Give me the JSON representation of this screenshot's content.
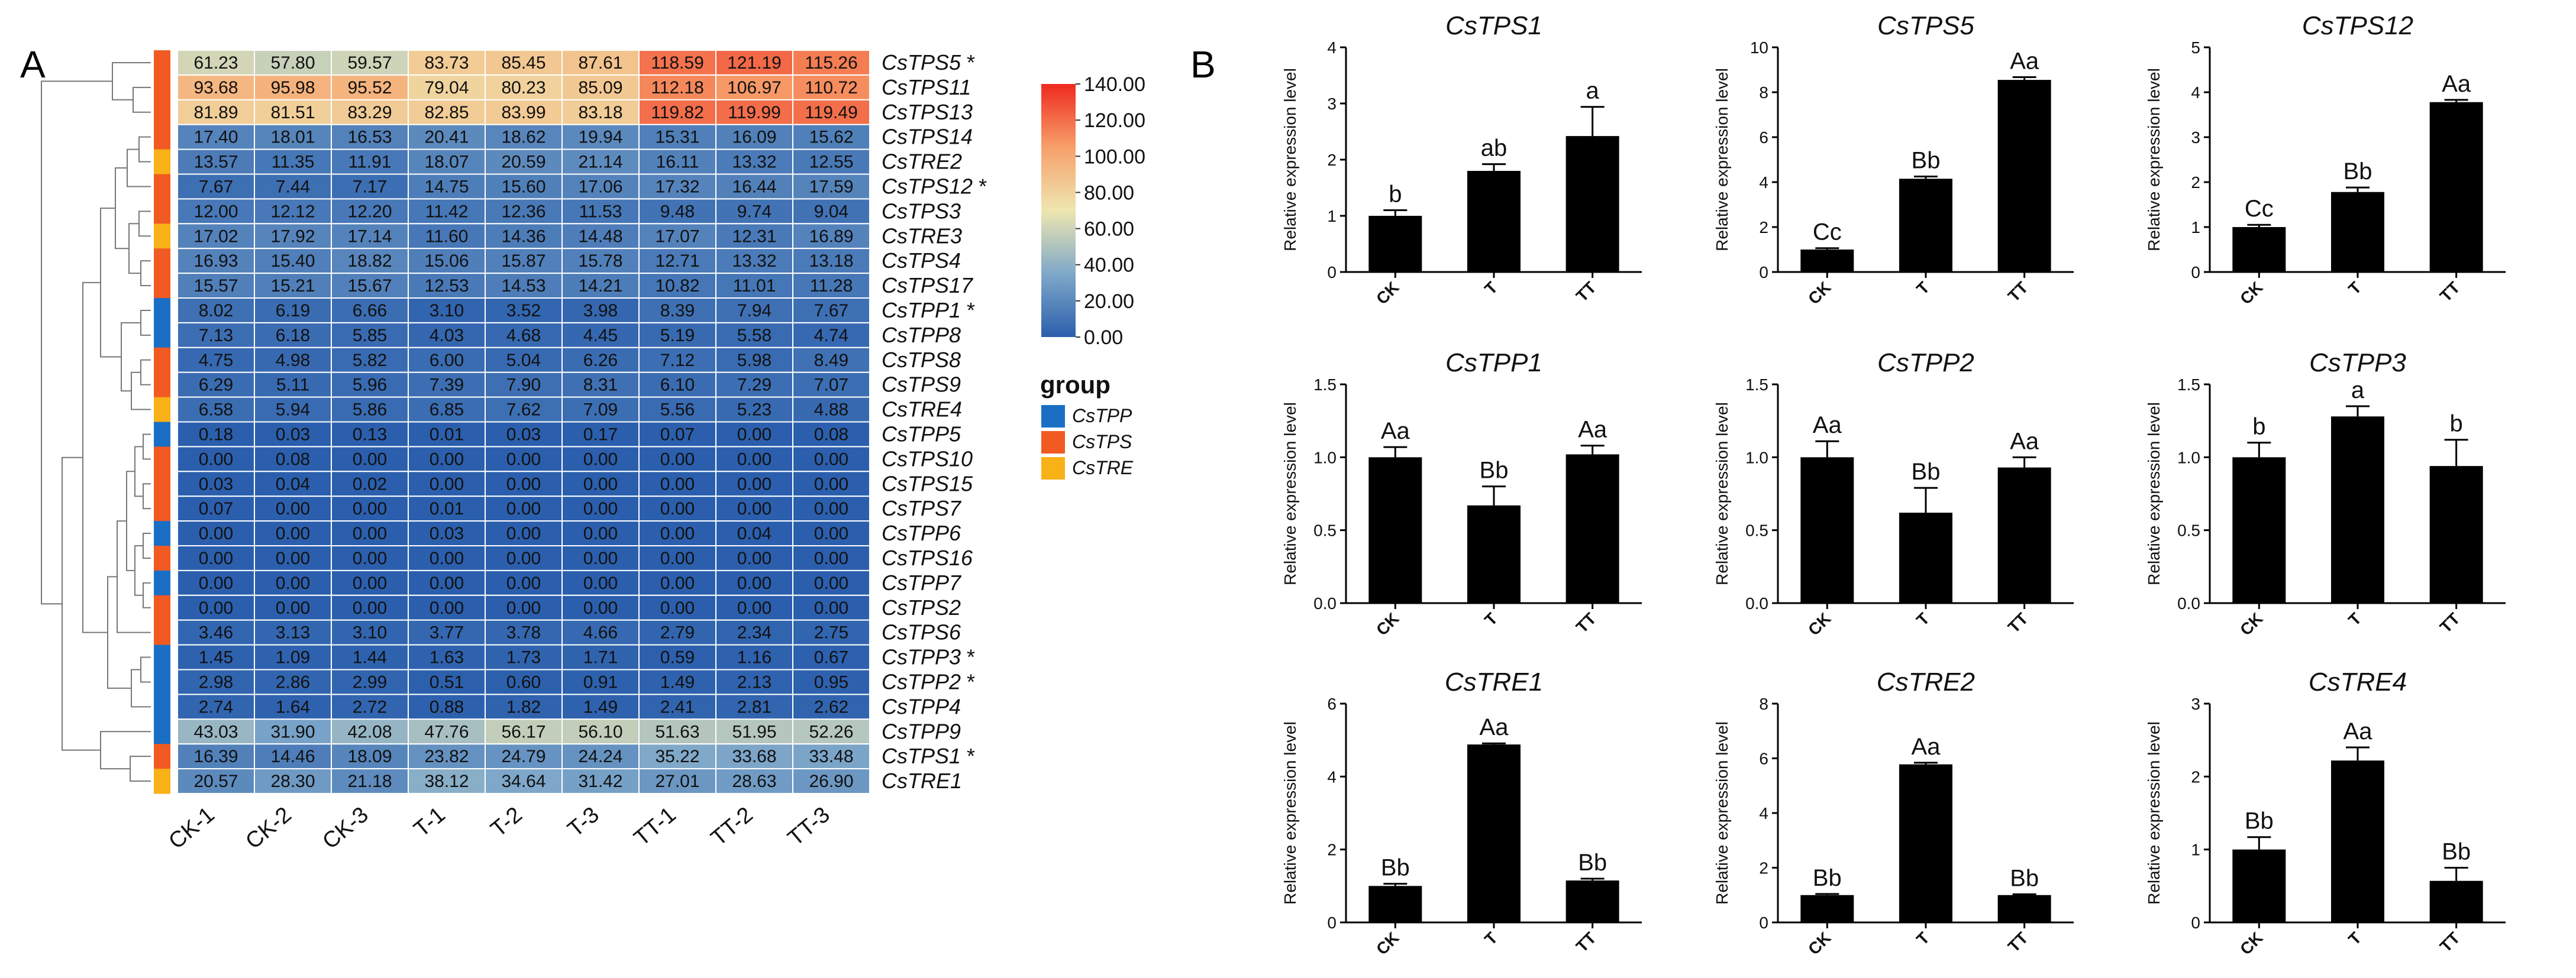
{
  "panels": {
    "a": "A",
    "b": "B"
  },
  "heatmap": {
    "columns": [
      "CK-1",
      "CK-2",
      "CK-3",
      "T-1",
      "T-2",
      "T-3",
      "TT-1",
      "TT-2",
      "TT-3"
    ],
    "rows": [
      {
        "gene": "CsTPS5",
        "group": "CsTPS",
        "star": true,
        "values": [
          61.23,
          57.8,
          59.57,
          83.73,
          85.45,
          87.61,
          118.59,
          121.19,
          115.26
        ]
      },
      {
        "gene": "CsTPS11",
        "group": "CsTPS",
        "star": false,
        "values": [
          93.68,
          95.98,
          95.52,
          79.04,
          80.23,
          85.09,
          112.18,
          106.97,
          110.72
        ]
      },
      {
        "gene": "CsTPS13",
        "group": "CsTPS",
        "star": false,
        "values": [
          81.89,
          81.51,
          83.29,
          82.85,
          83.99,
          83.18,
          119.82,
          119.99,
          119.49
        ]
      },
      {
        "gene": "CsTPS14",
        "group": "CsTPS",
        "star": false,
        "values": [
          17.4,
          18.01,
          16.53,
          20.41,
          18.62,
          19.94,
          15.31,
          16.09,
          15.62
        ]
      },
      {
        "gene": "CsTRE2",
        "group": "CsTRE",
        "star": false,
        "values": [
          13.57,
          11.35,
          11.91,
          18.07,
          20.59,
          21.14,
          16.11,
          13.32,
          12.55
        ]
      },
      {
        "gene": "CsTPS12",
        "group": "CsTPS",
        "star": true,
        "values": [
          7.67,
          7.44,
          7.17,
          14.75,
          15.6,
          17.06,
          17.32,
          16.44,
          17.59
        ]
      },
      {
        "gene": "CsTPS3",
        "group": "CsTPS",
        "star": false,
        "values": [
          12.0,
          12.12,
          12.2,
          11.42,
          12.36,
          11.53,
          9.48,
          9.74,
          9.04
        ]
      },
      {
        "gene": "CsTRE3",
        "group": "CsTRE",
        "star": false,
        "values": [
          17.02,
          17.92,
          17.14,
          11.6,
          14.36,
          14.48,
          17.07,
          12.31,
          16.89
        ]
      },
      {
        "gene": "CsTPS4",
        "group": "CsTPS",
        "star": false,
        "values": [
          16.93,
          15.4,
          18.82,
          15.06,
          15.87,
          15.78,
          12.71,
          13.32,
          13.18
        ]
      },
      {
        "gene": "CsTPS17",
        "group": "CsTPS",
        "star": false,
        "values": [
          15.57,
          15.21,
          15.67,
          12.53,
          14.53,
          14.21,
          10.82,
          11.01,
          11.28
        ]
      },
      {
        "gene": "CsTPP1",
        "group": "CsTPP",
        "star": true,
        "values": [
          8.02,
          6.19,
          6.66,
          3.1,
          3.52,
          3.98,
          8.39,
          7.94,
          7.67
        ]
      },
      {
        "gene": "CsTPP8",
        "group": "CsTPP",
        "star": false,
        "values": [
          7.13,
          6.18,
          5.85,
          4.03,
          4.68,
          4.45,
          5.19,
          5.58,
          4.74
        ]
      },
      {
        "gene": "CsTPS8",
        "group": "CsTPS",
        "star": false,
        "values": [
          4.75,
          4.98,
          5.82,
          6.0,
          5.04,
          6.26,
          7.12,
          5.98,
          8.49
        ]
      },
      {
        "gene": "CsTPS9",
        "group": "CsTPS",
        "star": false,
        "values": [
          6.29,
          5.11,
          5.96,
          7.39,
          7.9,
          8.31,
          6.1,
          7.29,
          7.07
        ]
      },
      {
        "gene": "CsTRE4",
        "group": "CsTRE",
        "star": false,
        "values": [
          6.58,
          5.94,
          5.86,
          6.85,
          7.62,
          7.09,
          5.56,
          5.23,
          4.88
        ]
      },
      {
        "gene": "CsTPP5",
        "group": "CsTPP",
        "star": false,
        "values": [
          0.18,
          0.03,
          0.13,
          0.01,
          0.03,
          0.17,
          0.07,
          0.0,
          0.08
        ]
      },
      {
        "gene": "CsTPS10",
        "group": "CsTPS",
        "star": false,
        "values": [
          0.0,
          0.08,
          0.0,
          0.0,
          0.0,
          0.0,
          0.0,
          0.0,
          0.0
        ]
      },
      {
        "gene": "CsTPS15",
        "group": "CsTPS",
        "star": false,
        "values": [
          0.03,
          0.04,
          0.02,
          0.0,
          0.0,
          0.0,
          0.0,
          0.0,
          0.0
        ]
      },
      {
        "gene": "CsTPS7",
        "group": "CsTPS",
        "star": false,
        "values": [
          0.07,
          0.0,
          0.0,
          0.01,
          0.0,
          0.0,
          0.0,
          0.0,
          0.0
        ]
      },
      {
        "gene": "CsTPP6",
        "group": "CsTPP",
        "star": false,
        "values": [
          0.0,
          0.0,
          0.0,
          0.03,
          0.0,
          0.0,
          0.0,
          0.04,
          0.0
        ]
      },
      {
        "gene": "CsTPS16",
        "group": "CsTPS",
        "star": false,
        "values": [
          0.0,
          0.0,
          0.0,
          0.0,
          0.0,
          0.0,
          0.0,
          0.0,
          0.0
        ]
      },
      {
        "gene": "CsTPP7",
        "group": "CsTPP",
        "star": false,
        "values": [
          0.0,
          0.0,
          0.0,
          0.0,
          0.0,
          0.0,
          0.0,
          0.0,
          0.0
        ]
      },
      {
        "gene": "CsTPS2",
        "group": "CsTPS",
        "star": false,
        "values": [
          0.0,
          0.0,
          0.0,
          0.0,
          0.0,
          0.0,
          0.0,
          0.0,
          0.0
        ]
      },
      {
        "gene": "CsTPS6",
        "group": "CsTPS",
        "star": false,
        "values": [
          3.46,
          3.13,
          3.1,
          3.77,
          3.78,
          4.66,
          2.79,
          2.34,
          2.75
        ]
      },
      {
        "gene": "CsTPP3",
        "group": "CsTPP",
        "star": true,
        "values": [
          1.45,
          1.09,
          1.44,
          1.63,
          1.73,
          1.71,
          0.59,
          1.16,
          0.67
        ]
      },
      {
        "gene": "CsTPP2",
        "group": "CsTPP",
        "star": true,
        "values": [
          2.98,
          2.86,
          2.99,
          0.51,
          0.6,
          0.91,
          1.49,
          2.13,
          0.95
        ]
      },
      {
        "gene": "CsTPP4",
        "group": "CsTPP",
        "star": false,
        "values": [
          2.74,
          1.64,
          2.72,
          0.88,
          1.82,
          1.49,
          2.41,
          2.81,
          2.62
        ]
      },
      {
        "gene": "CsTPP9",
        "group": "CsTPP",
        "star": false,
        "values": [
          43.03,
          31.9,
          42.08,
          47.76,
          56.17,
          56.1,
          51.63,
          51.95,
          52.26
        ]
      },
      {
        "gene": "CsTPS1",
        "group": "CsTPS",
        "star": true,
        "values": [
          16.39,
          14.46,
          18.09,
          23.82,
          24.79,
          24.24,
          35.22,
          33.68,
          33.48
        ]
      },
      {
        "gene": "CsTRE1",
        "group": "CsTRE",
        "star": false,
        "values": [
          20.57,
          28.3,
          21.18,
          38.12,
          34.64,
          31.42,
          27.01,
          28.63,
          26.9
        ]
      }
    ],
    "colorbar": {
      "ticks": [
        "140.00",
        "120.00",
        "100.00",
        "80.00",
        "60.00",
        "40.00",
        "20.00",
        "0.00"
      ],
      "min": 0,
      "max": 140,
      "stops": [
        "#2b5fad",
        "#7fa8c9",
        "#eee6b0",
        "#f7a06a",
        "#ee2a1f"
      ]
    },
    "legend": {
      "title": "group",
      "items": [
        {
          "key": "CsTPP",
          "label": "CsTPP",
          "color": "#1a6fc4"
        },
        {
          "key": "CsTPS",
          "label": "CsTPS",
          "color": "#f15a22"
        },
        {
          "key": "CsTRE",
          "label": "CsTRE",
          "color": "#f8b117"
        }
      ]
    }
  },
  "chart_data": [
    {
      "type": "bar",
      "title": "CsTPS1",
      "ylabel": "Relative expression level",
      "categories": [
        "CK",
        "T",
        "TT"
      ],
      "values": [
        1.0,
        1.8,
        2.42
      ],
      "errors": [
        0.1,
        0.12,
        0.52
      ],
      "letters": [
        "b",
        "ab",
        "a"
      ],
      "ylim": [
        0,
        4
      ],
      "yticks": [
        "0",
        "1",
        "2",
        "3",
        "4"
      ]
    },
    {
      "type": "bar",
      "title": "CsTPS5",
      "ylabel": "Relative expression level",
      "categories": [
        "CK",
        "T",
        "TT"
      ],
      "values": [
        1.0,
        4.15,
        8.55
      ],
      "errors": [
        0.06,
        0.1,
        0.12
      ],
      "letters": [
        "Cc",
        "Bb",
        "Aa"
      ],
      "ylim": [
        0,
        10
      ],
      "yticks": [
        "0",
        "2",
        "4",
        "6",
        "8",
        "10"
      ]
    },
    {
      "type": "bar",
      "title": "CsTPS12",
      "ylabel": "Relative expression level",
      "categories": [
        "CK",
        "T",
        "TT"
      ],
      "values": [
        1.0,
        1.78,
        3.78
      ],
      "errors": [
        0.05,
        0.1,
        0.05
      ],
      "letters": [
        "Cc",
        "Bb",
        "Aa"
      ],
      "ylim": [
        0,
        5
      ],
      "yticks": [
        "0",
        "1",
        "2",
        "3",
        "4",
        "5"
      ]
    },
    {
      "type": "bar",
      "title": "CsTPP1",
      "ylabel": "Relative expression level",
      "categories": [
        "CK",
        "T",
        "TT"
      ],
      "values": [
        1.0,
        0.67,
        1.02
      ],
      "errors": [
        0.07,
        0.13,
        0.06
      ],
      "letters": [
        "Aa",
        "Bb",
        "Aa"
      ],
      "ylim": [
        0,
        1.5
      ],
      "yticks": [
        "0.0",
        "0.5",
        "1.0",
        "1.5"
      ]
    },
    {
      "type": "bar",
      "title": "CsTPP2",
      "ylabel": "Relative expression level",
      "categories": [
        "CK",
        "T",
        "TT"
      ],
      "values": [
        1.0,
        0.62,
        0.93
      ],
      "errors": [
        0.11,
        0.17,
        0.07
      ],
      "letters": [
        "Aa",
        "Bb",
        "Aa"
      ],
      "ylim": [
        0,
        1.5
      ],
      "yticks": [
        "0.0",
        "0.5",
        "1.0",
        "1.5"
      ]
    },
    {
      "type": "bar",
      "title": "CsTPP3",
      "ylabel": "Relative expression level",
      "categories": [
        "CK",
        "T",
        "TT"
      ],
      "values": [
        1.0,
        1.28,
        0.94
      ],
      "errors": [
        0.1,
        0.07,
        0.18
      ],
      "letters": [
        "b",
        "a",
        "b"
      ],
      "ylim": [
        0,
        1.5
      ],
      "yticks": [
        "0.0",
        "0.5",
        "1.0",
        "1.5"
      ]
    },
    {
      "type": "bar",
      "title": "CsTRE1",
      "ylabel": "Relative expression level",
      "categories": [
        "CK",
        "T",
        "TT"
      ],
      "values": [
        1.0,
        4.88,
        1.15
      ],
      "errors": [
        0.06,
        0.03,
        0.05
      ],
      "letters": [
        "Bb",
        "Aa",
        "Bb"
      ],
      "ylim": [
        0,
        6
      ],
      "yticks": [
        "0",
        "2",
        "4",
        "6"
      ]
    },
    {
      "type": "bar",
      "title": "CsTRE2",
      "ylabel": "Relative expression level",
      "categories": [
        "CK",
        "T",
        "TT"
      ],
      "values": [
        1.0,
        5.78,
        1.0
      ],
      "errors": [
        0.04,
        0.06,
        0.03
      ],
      "letters": [
        "Bb",
        "Aa",
        "Bb"
      ],
      "ylim": [
        0,
        8
      ],
      "yticks": [
        "0",
        "2",
        "4",
        "6",
        "8"
      ]
    },
    {
      "type": "bar",
      "title": "CsTRE4",
      "ylabel": "Relative expression level",
      "categories": [
        "CK",
        "T",
        "TT"
      ],
      "values": [
        1.0,
        2.22,
        0.57
      ],
      "errors": [
        0.17,
        0.18,
        0.18
      ],
      "letters": [
        "Bb",
        "Aa",
        "Bb"
      ],
      "ylim": [
        0,
        3
      ],
      "yticks": [
        "0",
        "1",
        "2",
        "3"
      ]
    }
  ]
}
